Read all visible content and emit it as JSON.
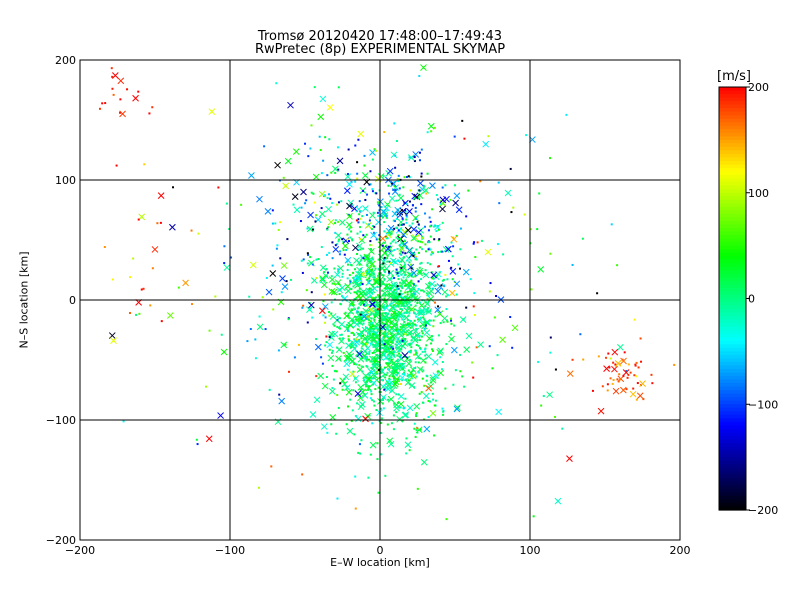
{
  "chart_data": {
    "type": "scatter",
    "title": "Tromsø 20120420 17:48:00–17:49:43",
    "subtitle": "RwPretec (8p) EXPERIMENTAL SKYMAP",
    "xlabel": "E–W location [km]",
    "ylabel": "N–S location [km]",
    "xlim": [
      -200,
      200
    ],
    "ylim": [
      -200,
      200
    ],
    "xticks": [
      -200,
      -100,
      0,
      100,
      200
    ],
    "yticks": [
      -200,
      -100,
      0,
      100,
      200
    ],
    "xtick_labels": [
      "−200",
      "−100",
      "0",
      "100",
      "200"
    ],
    "ytick_labels": [
      "−200",
      "−100",
      "0",
      "100",
      "200"
    ],
    "grid": true,
    "colorbar": {
      "unit_label": "[m/s]",
      "range": [
        -200,
        200
      ],
      "ticks": [
        200,
        100,
        0,
        -100,
        -200
      ],
      "tick_labels": [
        "200",
        "100",
        "0",
        "−100",
        "−200"
      ],
      "colors": [
        "#000000",
        "#0000ff",
        "#00ffff",
        "#00ff00",
        "#ffff00",
        "#ff0000"
      ]
    },
    "clusters": [
      {
        "cx": 5,
        "cy": -20,
        "sx": 18,
        "sy": 42,
        "n": 1400,
        "vmean": 5,
        "vsd": 22
      },
      {
        "cx": -10,
        "cy": 60,
        "sx": 35,
        "sy": 45,
        "n": 300,
        "vmean": -40,
        "vsd": 80
      },
      {
        "cx": 20,
        "cy": 65,
        "sx": 20,
        "sy": 25,
        "n": 150,
        "vmean": -100,
        "vsd": 70
      },
      {
        "cx": 0,
        "cy": 0,
        "sx": 75,
        "sy": 75,
        "n": 260,
        "vmean": 0,
        "vsd": 100
      },
      {
        "cx": 160,
        "cy": -62,
        "sx": 13,
        "sy": 10,
        "n": 60,
        "vmean": 175,
        "vsd": 25
      },
      {
        "cx": -170,
        "cy": 175,
        "sx": 15,
        "sy": 15,
        "n": 18,
        "vmean": 190,
        "vsd": 15
      },
      {
        "cx": -160,
        "cy": 40,
        "sx": 25,
        "sy": 40,
        "n": 25,
        "vmean": 160,
        "vsd": 40
      }
    ]
  }
}
